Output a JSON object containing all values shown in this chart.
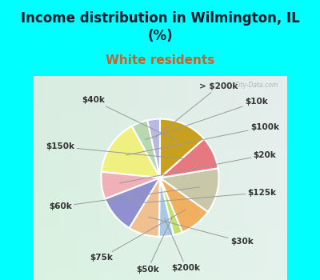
{
  "title": "Income distribution in Wilmington, IL\n(%)",
  "subtitle": "White residents",
  "title_color": "#1a1a2e",
  "subtitle_color": "#c8622a",
  "background_cyan": "#00ffff",
  "background_chart_tl": "#e0f5f0",
  "background_chart_br": "#d8eee8",
  "labels": [
    "> $200k",
    "$10k",
    "$100k",
    "$20k",
    "$125k",
    "$30k",
    "$200k",
    "$50k",
    "$75k",
    "$60k",
    "$150k",
    "$40k"
  ],
  "values": [
    3.5,
    4.5,
    15.5,
    7.5,
    10.5,
    8.5,
    4.0,
    2.5,
    9.0,
    12.5,
    9.0,
    13.5
  ],
  "colors": [
    "#b8b8e0",
    "#b8d8b0",
    "#f0f080",
    "#f0b0b8",
    "#9090d0",
    "#f0c090",
    "#a8c8e8",
    "#c0e070",
    "#f0b060",
    "#c8c8a8",
    "#e87880",
    "#c8a020"
  ],
  "startangle": 90,
  "label_fontsize": 7.5,
  "title_fontsize": 12,
  "subtitle_fontsize": 11,
  "label_color": "#333333"
}
